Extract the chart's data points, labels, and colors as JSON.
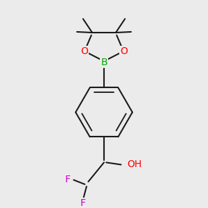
{
  "bg_color": "#ebebeb",
  "bond_color": "#1a1a1a",
  "bond_width": 1.5,
  "colors": {
    "B": "#00aa00",
    "O": "#ff0000",
    "F": "#cc00cc",
    "OH_O": "#ff0000",
    "C": "#1a1a1a"
  },
  "figsize": [
    3.0,
    3.0
  ],
  "dpi": 100
}
